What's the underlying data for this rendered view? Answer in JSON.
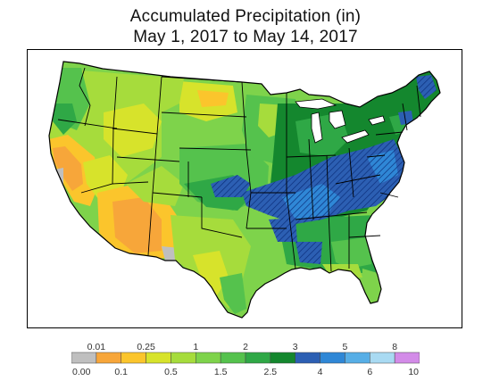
{
  "title": {
    "line1": "Accumulated Precipitation (in)",
    "line2": "May 1, 2017 to May 14, 2017"
  },
  "legend": {
    "classes": [
      {
        "color": "#bfbfbf"
      },
      {
        "color": "#f7a63a"
      },
      {
        "color": "#fbc52c"
      },
      {
        "color": "#d7e32b"
      },
      {
        "color": "#a6dc3c"
      },
      {
        "color": "#7ed34b"
      },
      {
        "color": "#55c24d"
      },
      {
        "color": "#2fa846"
      },
      {
        "color": "#14872e"
      },
      {
        "color": "#2c5fb3"
      },
      {
        "color": "#2f87d6"
      },
      {
        "color": "#57aee6"
      },
      {
        "color": "#a9daf2"
      },
      {
        "color": "#d38be8"
      }
    ],
    "top_labels": [
      "0.01",
      "0.25",
      "1",
      "2",
      "3",
      "5",
      "8"
    ],
    "bottom_labels": [
      "0.00",
      "0.1",
      "0.5",
      "1.5",
      "2.5",
      "4",
      "6",
      "10"
    ]
  },
  "hatch_note_color": "#0b2e7a"
}
